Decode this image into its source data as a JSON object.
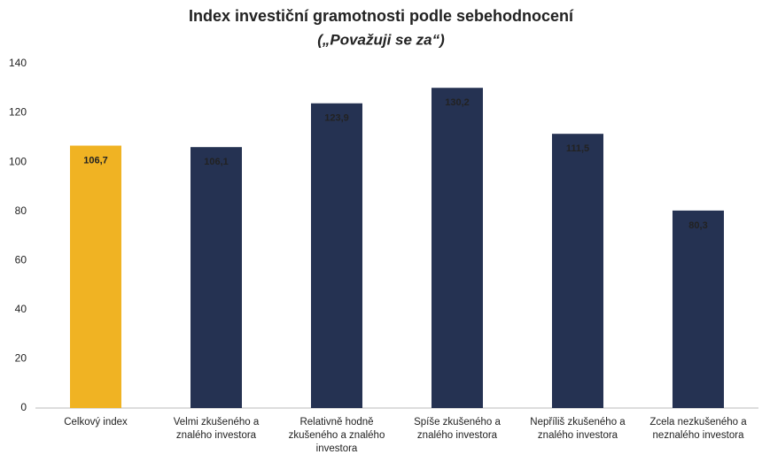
{
  "chart_data": {
    "type": "bar",
    "title": "Index investiční gramotnosti podle sebehodnocení",
    "subtitle": "(„Považuji se za“)",
    "categories": [
      "Celkový index",
      "Velmi zkušeného a znalého investora",
      "Relativně hodně zkušeného a znalého investora",
      "Spíše zkušeného a znalého investora",
      "Nepříliš zkušeného a znalého investora",
      "Zcela nezkušeného a neznalého investora"
    ],
    "values": [
      106.7,
      106.1,
      123.9,
      130.2,
      111.5,
      80.3
    ],
    "value_labels": [
      "106,7",
      "106,1",
      "123,9",
      "130,2",
      "111,5",
      "80,3"
    ],
    "colors": [
      "#f0b323",
      "#253252",
      "#253252",
      "#253252",
      "#253252",
      "#253252"
    ],
    "ylim": [
      0,
      140
    ],
    "yticks": [
      0,
      20,
      40,
      60,
      80,
      100,
      120,
      140
    ],
    "grid": false
  }
}
